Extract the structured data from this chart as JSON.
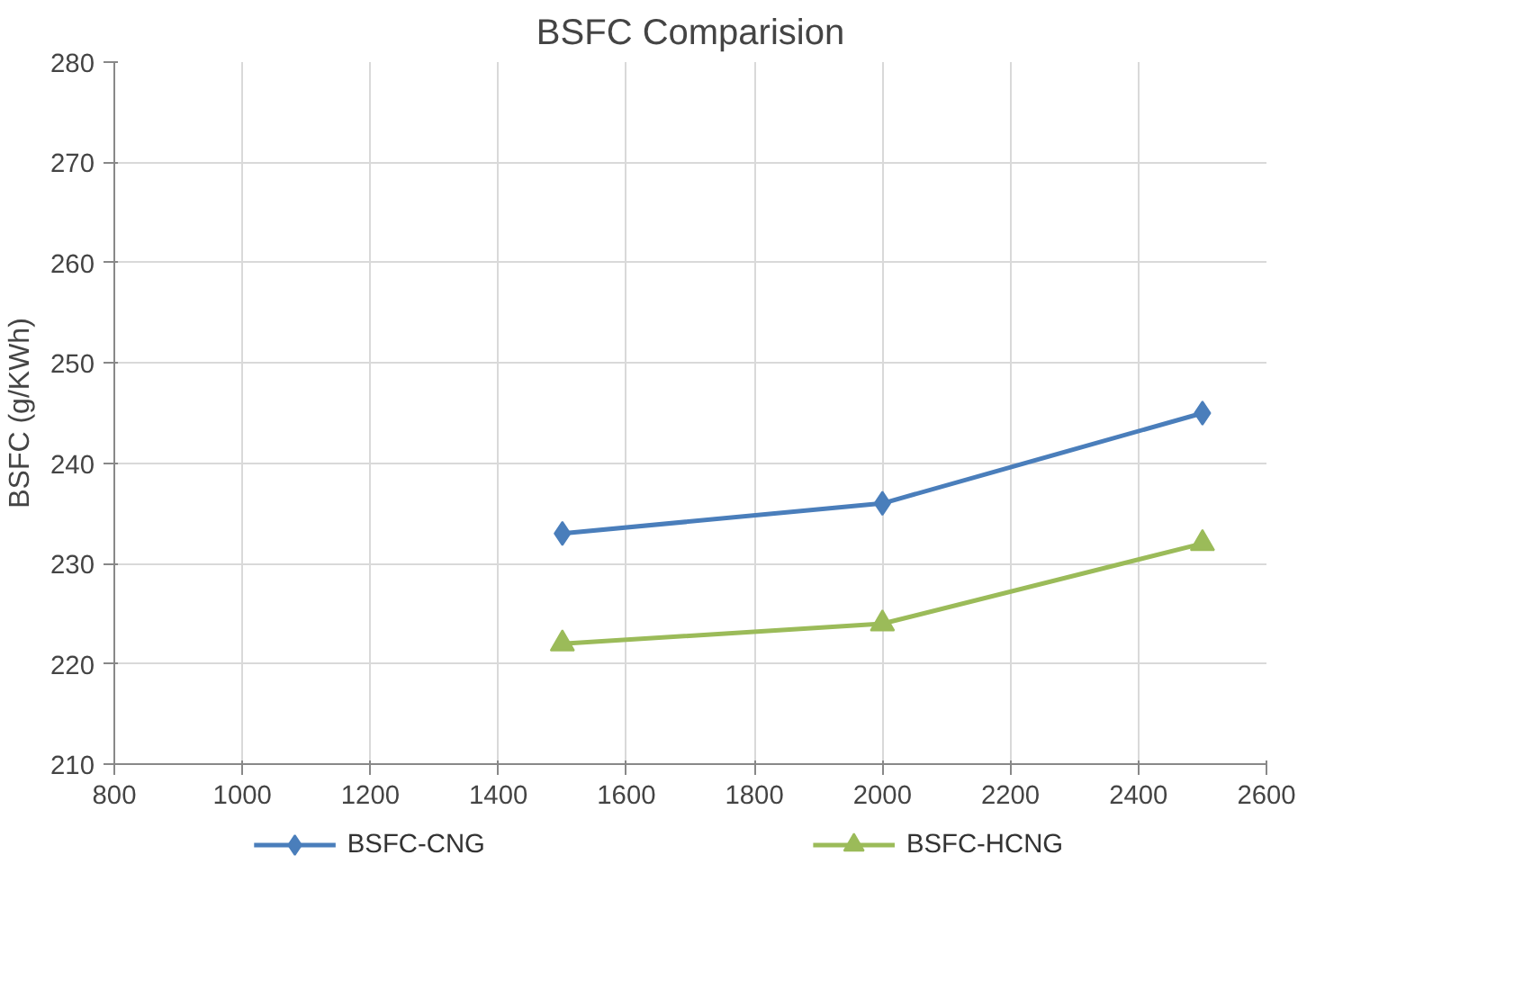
{
  "chart_data": {
    "type": "line",
    "title": "BSFC Comparision",
    "ylabel": "BSFC (g/KWh)",
    "x": [
      1500,
      2000,
      2500
    ],
    "series": [
      {
        "name": "BSFC-CNG",
        "color": "#4a7ebb",
        "marker": "diamond",
        "values": [
          233,
          236,
          245
        ]
      },
      {
        "name": "BSFC-HCNG",
        "color": "#9bbb59",
        "marker": "triangle",
        "values": [
          222,
          224,
          232
        ]
      }
    ],
    "xlim": [
      800,
      2600
    ],
    "xticks": [
      800,
      1000,
      1200,
      1400,
      1600,
      1800,
      2000,
      2200,
      2400,
      2600
    ],
    "ylim": [
      210,
      280
    ],
    "yticks": [
      210,
      220,
      230,
      240,
      250,
      260,
      270,
      280
    ],
    "grid": true,
    "legend": "bottom",
    "line_style": "solid"
  }
}
